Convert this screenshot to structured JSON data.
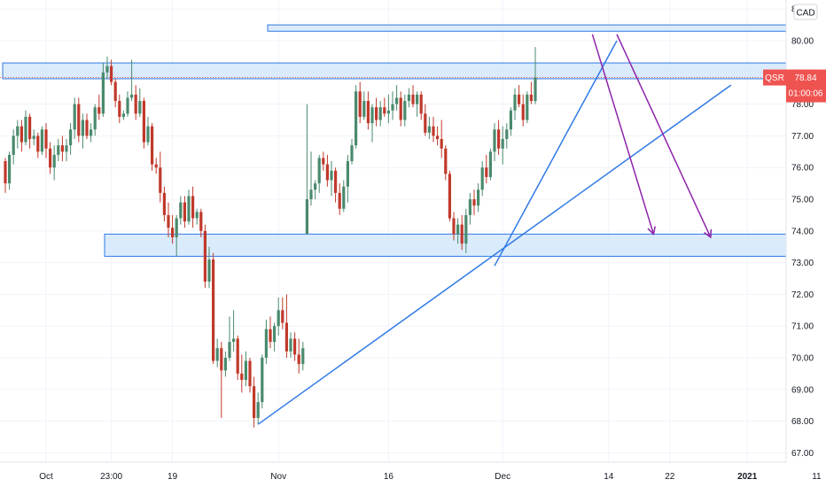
{
  "header": {
    "currency_button": "CAD"
  },
  "price_scale": {
    "symbol": "QSR",
    "last_price": "78.84",
    "countdown": "01:00:06",
    "ticks": [
      "81.00",
      "80.00",
      "79.00",
      "78.00",
      "77.00",
      "76.00",
      "75.00",
      "74.00",
      "73.00",
      "72.00",
      "71.00",
      "70.00",
      "69.00",
      "68.00",
      "67.00"
    ]
  },
  "time_axis": {
    "ticks": [
      "Oct",
      "23:00",
      "19",
      "Nov",
      "16",
      "Dec",
      "14",
      "22",
      "2021",
      "11"
    ]
  },
  "colors": {
    "up": "#4a8a6d",
    "down": "#c0392b",
    "trendline": "#2f7ae5",
    "zone_fill": "#d4e8fb",
    "zone_border": "#2f7ae5",
    "arrow": "#8e24aa",
    "price_tag": "#ef5350"
  },
  "chart_data": {
    "type": "candlestick",
    "symbol": "QSR",
    "currency": "CAD",
    "y_range": [
      66.6,
      81.1
    ],
    "y_ticks": [
      67,
      68,
      69,
      70,
      71,
      72,
      73,
      74,
      75,
      76,
      77,
      78,
      79,
      80,
      81
    ],
    "last_price": 78.84,
    "x_labels": [
      {
        "label": "Oct",
        "bar": 10
      },
      {
        "label": "23:00",
        "bar": 26
      },
      {
        "label": "19",
        "bar": 41
      },
      {
        "label": "Nov",
        "bar": 67
      },
      {
        "label": "16",
        "bar": 94
      },
      {
        "label": "Dec",
        "bar": 122
      },
      {
        "label": "14",
        "bar": 148
      },
      {
        "label": "22",
        "bar": 163
      },
      {
        "label": "2021",
        "bar": 182
      },
      {
        "label": "11",
        "bar": 199
      }
    ],
    "candles": [
      [
        76.2,
        76.3,
        75.2,
        75.5
      ],
      [
        75.5,
        76.5,
        75.3,
        76.4
      ],
      [
        76.4,
        77.2,
        76.1,
        77.0
      ],
      [
        77.0,
        77.5,
        76.6,
        77.3
      ],
      [
        77.3,
        77.5,
        76.5,
        76.8
      ],
      [
        76.8,
        77.8,
        76.7,
        77.6
      ],
      [
        77.6,
        77.7,
        76.6,
        76.9
      ],
      [
        76.9,
        77.2,
        76.7,
        77.0
      ],
      [
        77.0,
        77.1,
        76.3,
        76.5
      ],
      [
        76.5,
        77.3,
        76.4,
        77.2
      ],
      [
        77.2,
        77.4,
        76.3,
        76.6
      ],
      [
        76.6,
        76.8,
        75.8,
        76.0
      ],
      [
        76.0,
        76.7,
        75.6,
        76.4
      ],
      [
        76.4,
        76.9,
        76.2,
        76.7
      ],
      [
        76.7,
        77.0,
        76.2,
        76.5
      ],
      [
        76.5,
        76.9,
        76.2,
        76.7
      ],
      [
        76.7,
        77.4,
        76.4,
        77.2
      ],
      [
        77.2,
        78.2,
        76.9,
        78.0
      ],
      [
        78.0,
        78.2,
        76.8,
        77.0
      ],
      [
        77.0,
        77.7,
        76.6,
        77.5
      ],
      [
        77.5,
        77.7,
        76.9,
        77.0
      ],
      [
        77.0,
        77.4,
        76.8,
        77.2
      ],
      [
        77.2,
        78.0,
        77.0,
        77.9
      ],
      [
        77.9,
        78.3,
        77.5,
        77.7
      ],
      [
        77.7,
        79.3,
        77.6,
        79.0
      ],
      [
        79.0,
        79.5,
        78.8,
        79.2
      ],
      [
        79.2,
        79.4,
        78.6,
        78.7
      ],
      [
        78.7,
        78.8,
        77.9,
        78.1
      ],
      [
        78.1,
        78.3,
        77.4,
        77.6
      ],
      [
        77.6,
        77.8,
        77.5,
        77.7
      ],
      [
        77.7,
        78.4,
        77.6,
        78.2
      ],
      [
        78.2,
        79.4,
        78.1,
        78.3
      ],
      [
        78.3,
        78.6,
        77.5,
        77.7
      ],
      [
        77.7,
        78.5,
        77.6,
        78.1
      ],
      [
        78.1,
        78.2,
        76.6,
        76.8
      ],
      [
        76.8,
        77.6,
        76.7,
        77.3
      ],
      [
        77.3,
        77.4,
        75.9,
        76.1
      ],
      [
        76.1,
        76.3,
        75.8,
        76.0
      ],
      [
        76.0,
        76.5,
        74.9,
        75.2
      ],
      [
        75.2,
        75.4,
        74.3,
        74.5
      ],
      [
        74.5,
        74.9,
        73.8,
        74.1
      ],
      [
        74.1,
        74.5,
        73.6,
        73.8
      ],
      [
        73.8,
        74.5,
        73.2,
        74.4
      ],
      [
        74.4,
        75.1,
        74.2,
        74.9
      ],
      [
        74.9,
        75.1,
        74.1,
        74.3
      ],
      [
        74.3,
        75.3,
        74.2,
        75.1
      ],
      [
        75.1,
        75.4,
        74.1,
        74.4
      ],
      [
        74.4,
        74.7,
        74.2,
        74.6
      ],
      [
        74.6,
        74.7,
        73.8,
        74.0
      ],
      [
        74.0,
        74.2,
        72.2,
        72.4
      ],
      [
        72.4,
        73.5,
        72.2,
        73.1
      ],
      [
        73.1,
        73.3,
        69.8,
        69.9
      ],
      [
        69.9,
        70.6,
        69.7,
        70.3
      ],
      [
        70.3,
        70.5,
        68.1,
        69.6
      ],
      [
        69.6,
        70.2,
        69.4,
        70.0
      ],
      [
        70.0,
        71.3,
        69.9,
        70.5
      ],
      [
        70.5,
        71.5,
        70.2,
        70.6
      ],
      [
        70.6,
        70.7,
        69.3,
        69.5
      ],
      [
        69.5,
        70.1,
        68.9,
        69.3
      ],
      [
        69.3,
        70.2,
        69.1,
        69.9
      ],
      [
        69.9,
        70.0,
        68.9,
        69.1
      ],
      [
        69.1,
        69.4,
        67.8,
        68.1
      ],
      [
        68.1,
        68.9,
        67.9,
        68.6
      ],
      [
        68.6,
        70.1,
        68.4,
        70.0
      ],
      [
        70.0,
        71.2,
        69.8,
        70.9
      ],
      [
        70.9,
        71.3,
        70.3,
        70.5
      ],
      [
        70.5,
        71.1,
        70.2,
        71.0
      ],
      [
        71.0,
        71.9,
        70.7,
        71.5
      ],
      [
        71.5,
        71.9,
        70.9,
        71.1
      ],
      [
        71.1,
        72.0,
        70.0,
        70.2
      ],
      [
        70.2,
        70.8,
        70.0,
        70.6
      ],
      [
        70.6,
        70.8,
        69.9,
        70.1
      ],
      [
        70.1,
        70.6,
        69.5,
        69.8
      ],
      [
        69.8,
        70.5,
        69.6,
        70.3
      ],
      [
        73.9,
        78.0,
        73.9,
        75.0
      ],
      [
        75.0,
        76.5,
        74.8,
        75.3
      ],
      [
        75.3,
        75.6,
        75.0,
        75.5
      ],
      [
        75.5,
        76.4,
        75.2,
        76.3
      ],
      [
        76.3,
        76.5,
        75.9,
        76.1
      ],
      [
        76.1,
        76.4,
        75.4,
        75.6
      ],
      [
        75.6,
        76.2,
        75.1,
        75.9
      ],
      [
        75.9,
        76.0,
        74.9,
        75.2
      ],
      [
        75.2,
        75.5,
        74.5,
        74.7
      ],
      [
        74.7,
        75.6,
        74.6,
        75.4
      ],
      [
        75.4,
        76.4,
        74.9,
        76.2
      ],
      [
        76.2,
        76.9,
        76.1,
        76.7
      ],
      [
        76.7,
        78.6,
        76.6,
        78.4
      ],
      [
        78.4,
        78.7,
        77.4,
        77.6
      ],
      [
        77.6,
        78.4,
        77.5,
        78.1
      ],
      [
        78.1,
        78.4,
        77.2,
        77.4
      ],
      [
        77.4,
        78.0,
        76.8,
        77.9
      ],
      [
        77.9,
        78.2,
        77.3,
        77.5
      ],
      [
        77.5,
        78.1,
        77.3,
        77.9
      ],
      [
        77.9,
        78.2,
        77.6,
        77.7
      ],
      [
        77.7,
        78.3,
        77.4,
        77.8
      ],
      [
        77.8,
        78.4,
        77.5,
        78.0
      ],
      [
        78.0,
        78.6,
        77.8,
        78.2
      ],
      [
        78.2,
        78.4,
        77.3,
        77.5
      ],
      [
        77.5,
        78.3,
        77.3,
        78.1
      ],
      [
        78.1,
        78.5,
        77.9,
        78.3
      ],
      [
        78.3,
        78.6,
        77.9,
        78.0
      ],
      [
        78.0,
        78.4,
        77.6,
        78.3
      ],
      [
        78.3,
        78.4,
        77.5,
        77.7
      ],
      [
        77.7,
        78.0,
        77.0,
        77.1
      ],
      [
        77.1,
        77.6,
        76.9,
        77.3
      ],
      [
        77.3,
        77.6,
        76.8,
        77.0
      ],
      [
        77.0,
        77.3,
        76.7,
        76.9
      ],
      [
        76.9,
        77.5,
        76.3,
        76.6
      ],
      [
        76.6,
        76.7,
        75.6,
        75.8
      ],
      [
        75.8,
        75.9,
        74.3,
        74.4
      ],
      [
        74.4,
        74.6,
        73.7,
        73.9
      ],
      [
        73.9,
        74.4,
        73.6,
        74.2
      ],
      [
        74.2,
        74.5,
        73.4,
        73.6
      ],
      [
        73.6,
        74.7,
        73.3,
        74.5
      ],
      [
        74.5,
        75.2,
        74.2,
        75.0
      ],
      [
        75.0,
        75.3,
        74.5,
        74.8
      ],
      [
        74.8,
        75.5,
        74.6,
        75.3
      ],
      [
        75.3,
        76.2,
        75.1,
        76.0
      ],
      [
        76.0,
        76.4,
        75.5,
        75.7
      ],
      [
        75.7,
        76.6,
        75.6,
        76.5
      ],
      [
        76.5,
        77.4,
        76.2,
        77.2
      ],
      [
        77.2,
        77.5,
        76.4,
        76.6
      ],
      [
        76.6,
        77.3,
        76.1,
        76.9
      ],
      [
        76.9,
        77.4,
        76.6,
        77.2
      ],
      [
        77.2,
        77.9,
        77.0,
        77.8
      ],
      [
        77.8,
        78.5,
        77.5,
        78.3
      ],
      [
        78.3,
        78.6,
        77.9,
        78.0
      ],
      [
        78.0,
        78.3,
        77.3,
        77.5
      ],
      [
        77.5,
        78.4,
        77.4,
        78.3
      ],
      [
        78.3,
        78.7,
        78.0,
        78.1
      ],
      [
        78.1,
        79.8,
        78.0,
        78.84
      ]
    ],
    "zones": [
      {
        "from_bar": 0,
        "top": 79.3,
        "bottom": 78.8
      },
      {
        "from_bar": 65,
        "top": 80.5,
        "bottom": 80.3
      },
      {
        "from_bar": 25,
        "top": 73.9,
        "bottom": 73.2
      }
    ],
    "trendlines": [
      {
        "x1": 62,
        "y1": 67.9,
        "x2": 178,
        "y2": 78.6
      },
      {
        "x1": 120,
        "y1": 72.9,
        "x2": 150,
        "y2": 80.0
      }
    ],
    "arrows": [
      {
        "x1": 144,
        "y1": 80.2,
        "x2": 159,
        "y2": 73.9
      },
      {
        "x1": 150,
        "y1": 80.2,
        "x2": 173,
        "y2": 73.8
      }
    ]
  }
}
